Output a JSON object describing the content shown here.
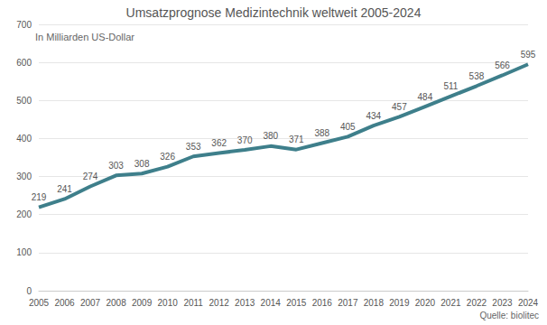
{
  "chart_data": {
    "type": "line",
    "title": "Umsatzprognose Medizintechnik weltweit 2005-2024",
    "subtitle": "In Milliarden US-Dollar",
    "annotations": [
      "Quelle: biolitec"
    ],
    "categories": [
      "2005",
      "2006",
      "2007",
      "2008",
      "2009",
      "2010",
      "2011",
      "2012",
      "2013",
      "2014",
      "2015",
      "2016",
      "2017",
      "2018",
      "2019",
      "2020",
      "2021",
      "2022",
      "2023",
      "2024"
    ],
    "values": [
      219,
      241,
      274,
      303,
      308,
      326,
      353,
      362,
      370,
      380,
      371,
      388,
      405,
      434,
      457,
      484,
      511,
      538,
      566,
      595
    ],
    "color": "#3e7f8b",
    "ylim": [
      0,
      700
    ],
    "yticks": [
      0,
      100,
      200,
      300,
      400,
      500,
      600,
      700
    ],
    "grid": true,
    "data_labels": true,
    "marker": "none"
  }
}
